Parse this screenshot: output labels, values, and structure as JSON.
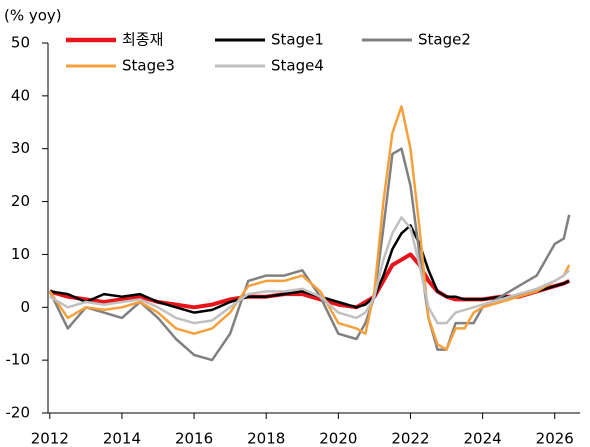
{
  "chart_data": {
    "type": "line",
    "y_label": "(% yoy)",
    "x": [
      2012,
      2012.5,
      2013,
      2013.5,
      2014,
      2014.5,
      2015,
      2015.5,
      2016,
      2016.5,
      2017,
      2017.5,
      2018,
      2018.5,
      2019,
      2019.5,
      2020,
      2020.5,
      2020.75,
      2021,
      2021.25,
      2021.5,
      2021.75,
      2022,
      2022.25,
      2022.5,
      2022.75,
      2023,
      2023.25,
      2023.5,
      2023.75,
      2024,
      2024.5,
      2025,
      2025.5,
      2026,
      2026.25,
      2026.4
    ],
    "series": [
      {
        "name": "최종재",
        "color": "#e8141c",
        "width": 4,
        "values": [
          3,
          2,
          1.5,
          1,
          1.5,
          2,
          1,
          0.5,
          0,
          0.5,
          1.5,
          2,
          2,
          2.5,
          2.5,
          1.5,
          0.5,
          0,
          1,
          2,
          5,
          8,
          9,
          10,
          8,
          5,
          3,
          2,
          1.5,
          1.5,
          1.5,
          1.5,
          2,
          2,
          3,
          4,
          4.5,
          5
        ]
      },
      {
        "name": "Stage1",
        "color": "#000000",
        "width": 2.5,
        "values": [
          3,
          2.5,
          1,
          2.5,
          2,
          2.5,
          1,
          0,
          -1,
          -0.5,
          1,
          2,
          2,
          2.5,
          3,
          2,
          1,
          0,
          0.5,
          2,
          6,
          11,
          14,
          15.5,
          12,
          7,
          3,
          2,
          2,
          1.5,
          1.5,
          1.5,
          2,
          2,
          3,
          4,
          4.5,
          5
        ]
      },
      {
        "name": "Stage2",
        "color": "#808080",
        "width": 2.5,
        "values": [
          3,
          -4,
          0,
          -1,
          -2,
          1,
          -2,
          -6,
          -9,
          -10,
          -5,
          5,
          6,
          6,
          7,
          2,
          -5,
          -6,
          -3,
          2,
          15,
          29,
          30,
          23,
          10,
          -2,
          -8,
          -8,
          -3,
          -3,
          -3,
          0,
          2,
          4,
          6,
          12,
          13,
          17.5
        ]
      },
      {
        "name": "Stage3",
        "color": "#f5a03c",
        "width": 2.5,
        "values": [
          3,
          -2,
          0,
          -0.5,
          0,
          1,
          -1,
          -4,
          -5,
          -4,
          -1,
          4,
          5,
          5,
          6,
          3,
          -3,
          -4,
          -5,
          3,
          20,
          33,
          38,
          30,
          15,
          -2,
          -7,
          -8,
          -4,
          -4,
          -1,
          0,
          1,
          2,
          3,
          5,
          6,
          8
        ]
      },
      {
        "name": "Stage4",
        "color": "#c0c0c0",
        "width": 2.5,
        "values": [
          2,
          0,
          1,
          0.5,
          1,
          1.5,
          0,
          -2,
          -3,
          -2.5,
          0,
          2.5,
          3,
          3,
          3.5,
          2,
          -1,
          -2,
          -1,
          2,
          9,
          14,
          17,
          15,
          8,
          0,
          -3,
          -3,
          -1,
          -0.5,
          0,
          0.5,
          1.5,
          2.5,
          3.5,
          5,
          6,
          7
        ]
      }
    ],
    "xlim": [
      2011.95,
      2026.7
    ],
    "xticks": [
      2012,
      2014,
      2016,
      2018,
      2020,
      2022,
      2024,
      2026
    ],
    "ylim": [
      -20,
      50
    ],
    "yticks": [
      -20,
      -10,
      0,
      10,
      20,
      30,
      40,
      50
    ],
    "grid": false,
    "legend": "top"
  }
}
